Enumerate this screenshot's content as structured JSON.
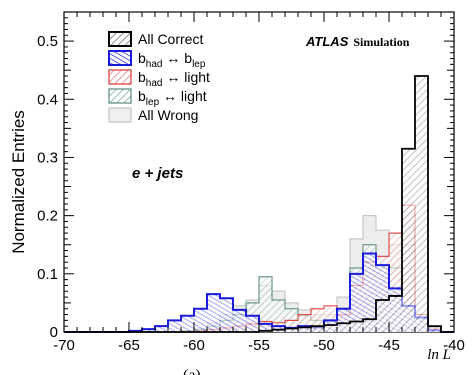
{
  "chart_data": {
    "type": "histogram",
    "xlabel": "ln L",
    "ylabel": "Normalized Entries",
    "xlim": [
      -70,
      -40
    ],
    "ylim": [
      0,
      0.55
    ],
    "xticks": [
      -70,
      -65,
      -60,
      -55,
      -50,
      -45,
      -40
    ],
    "yticks": [
      0,
      0.1,
      0.2,
      0.3,
      0.4,
      0.5
    ],
    "annotation_experiment": "ATLAS",
    "annotation_experiment_sub": "Simulation",
    "annotation_channel": "e + jets",
    "caption_fragment": "(a)",
    "bins": {
      "start": -70,
      "width": 1
    },
    "series": [
      {
        "name": "All Correct",
        "legend_main": "All Correct",
        "legend_sub": "",
        "color": "#000000",
        "style": "hatch-black",
        "values": [
          0,
          0,
          0,
          0,
          0,
          0,
          0,
          0,
          0,
          0,
          0,
          0,
          0,
          0,
          0,
          0.002,
          0.004,
          0.006,
          0.008,
          0.01,
          0.012,
          0.015,
          0.018,
          0.022,
          0.055,
          0.062,
          0.315,
          0.44,
          0.01,
          0
        ]
      },
      {
        "name": "b_had ↔ b_lep",
        "legend_main": "b",
        "legend_sub": "had",
        "legend_mid": " ↔ b",
        "legend_sub2": "lep",
        "color": "#1a1adc",
        "style": "hatch-blue",
        "values": [
          0,
          0,
          0,
          0,
          0,
          0.002,
          0.005,
          0.01,
          0.02,
          0.028,
          0.04,
          0.065,
          0.058,
          0.038,
          0.028,
          0.014,
          0.01,
          0.007,
          0.01,
          0.008,
          0.02,
          0.04,
          0.1,
          0.135,
          0.115,
          0.075,
          0.045,
          0.025,
          0.003,
          0
        ]
      },
      {
        "name": "b_had ↔ light",
        "legend_main": "b",
        "legend_sub": "had",
        "legend_mid": " ↔ light",
        "legend_sub2": "",
        "color": "#e05050",
        "style": "hatch-red",
        "values": [
          0,
          0,
          0,
          0,
          0,
          0,
          0,
          0,
          0,
          0,
          0.002,
          0.004,
          0.007,
          0.01,
          0.014,
          0.018,
          0.016,
          0.02,
          0.03,
          0.04,
          0.045,
          0.03,
          0.08,
          0.12,
          0.13,
          0.17,
          0.218,
          0.03,
          0.005,
          0
        ]
      },
      {
        "name": "b_lep ↔ light",
        "legend_main": "b",
        "legend_sub": "lep",
        "legend_mid": " ↔ light",
        "legend_sub2": "",
        "color": "#6f9a86",
        "style": "hatch-green",
        "values": [
          0,
          0,
          0,
          0,
          0,
          0,
          0,
          0,
          0,
          0.002,
          0.004,
          0.01,
          0.02,
          0.03,
          0.05,
          0.095,
          0.055,
          0.04,
          0.028,
          0.02,
          0.018,
          0.04,
          0.11,
          0.15,
          0.115,
          0.11,
          0.15,
          0.03,
          0.004,
          0
        ]
      },
      {
        "name": "All Wrong",
        "legend_main": "All Wrong",
        "legend_sub": "",
        "color": "#c8c8c8",
        "style": "fill-gray",
        "values": [
          0,
          0,
          0,
          0,
          0,
          0,
          0,
          0,
          0,
          0.002,
          0.006,
          0.015,
          0.03,
          0.045,
          0.055,
          0.08,
          0.07,
          0.05,
          0.038,
          0.03,
          0.03,
          0.06,
          0.16,
          0.2,
          0.175,
          0.15,
          0.205,
          0.03,
          0.004,
          0
        ]
      }
    ]
  }
}
